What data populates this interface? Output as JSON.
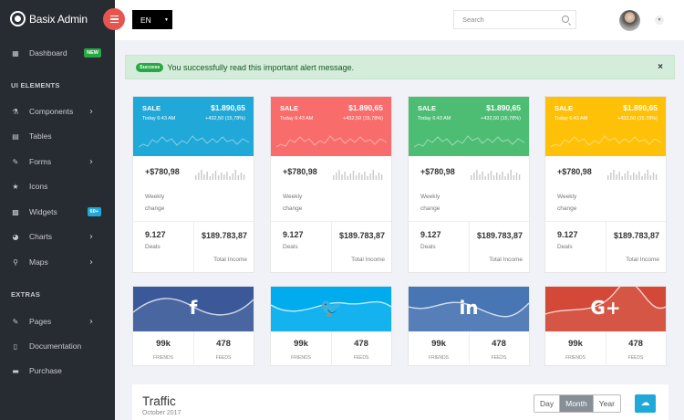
{
  "app": {
    "title": "Basix Admin"
  },
  "sidebar": {
    "items": [
      {
        "label": "Dashboard",
        "icon": "dashboard-icon",
        "glyph": "▦",
        "badge": "NEW",
        "badge_color": "#28a745"
      },
      {
        "label": "Components",
        "icon": "components-icon",
        "glyph": "⚗",
        "arrow": "›"
      },
      {
        "label": "Tables",
        "icon": "tables-icon",
        "glyph": "▤"
      },
      {
        "label": "Forms",
        "icon": "forms-icon",
        "glyph": "✎",
        "arrow": "›"
      },
      {
        "label": "Icons",
        "icon": "star-icon",
        "glyph": "★"
      },
      {
        "label": "Widgets",
        "icon": "calculator-icon",
        "glyph": "▩",
        "badge": "60+",
        "badge_color": "#20a8d8"
      },
      {
        "label": "Charts",
        "icon": "pie-chart-icon",
        "glyph": "◕",
        "arrow": "›"
      },
      {
        "label": "Maps",
        "icon": "map-marker-icon",
        "glyph": "⚲",
        "arrow": "›"
      },
      {
        "label": "Pages",
        "icon": "pages-icon",
        "glyph": "✎",
        "arrow": "›"
      },
      {
        "label": "Documentation",
        "icon": "document-icon",
        "glyph": "▯"
      },
      {
        "label": "Purchase",
        "icon": "cart-icon",
        "glyph": "▬"
      }
    ],
    "sections": [
      "UI ELEMENTS",
      "EXTRAS"
    ]
  },
  "header": {
    "lang": "EN",
    "search_placeholder": "Search"
  },
  "alert": {
    "tag": "Success",
    "message": "You successfully read this important alert message.",
    "close": "×"
  },
  "cards": [
    {
      "color": "#20a8d8",
      "label": "SALE",
      "value": "$1.890,65",
      "time": "Today 6:43 AM",
      "change": "+432,50 (15,78%)",
      "weekly": "+$780,98",
      "weekly_label": "Weekly change",
      "deals": "9.127",
      "deals_label": "Deals",
      "income": "$189.783,87",
      "income_label": "Total Income"
    },
    {
      "color": "#f86c6b",
      "label": "SALE",
      "value": "$1.890,65",
      "time": "Today 6:43 AM",
      "change": "+432,50 (15,78%)",
      "weekly": "+$780,98",
      "weekly_label": "Weekly change",
      "deals": "9.127",
      "deals_label": "Deals",
      "income": "$189.783,87",
      "income_label": "Total Income"
    },
    {
      "color": "#4dbd74",
      "label": "SALE",
      "value": "$1.890,65",
      "time": "Today 6:43 AM",
      "change": "+432,50 (15,78%)",
      "weekly": "+$780,98",
      "weekly_label": "Weekly change",
      "deals": "9.127",
      "deals_label": "Deals",
      "income": "$189.783,87",
      "income_label": "Total Income"
    },
    {
      "color": "#ffc107",
      "label": "SALE",
      "value": "$1.890,65",
      "time": "Today 6:43 AM",
      "change": "+432,50 (15,78%)",
      "weekly": "+$780,98",
      "weekly_label": "Weekly change",
      "deals": "9.127",
      "deals_label": "Deals",
      "income": "$189.783,87",
      "income_label": "Total Income"
    }
  ],
  "social": [
    {
      "network": "facebook",
      "icon": "facebook-icon",
      "glyph": "f",
      "color": "#3b5998",
      "friends": "99k",
      "friends_label": "FRIENDS",
      "feeds": "478",
      "feeds_label": "FEEDS"
    },
    {
      "network": "twitter",
      "icon": "twitter-icon",
      "glyph": "🐦",
      "color": "#00aced",
      "friends": "99k",
      "friends_label": "FRIENDS",
      "feeds": "478",
      "feeds_label": "FEEDS"
    },
    {
      "network": "linkedin",
      "icon": "linkedin-icon",
      "glyph": "in",
      "color": "#4875b4",
      "friends": "99k",
      "friends_label": "FRIENDS",
      "feeds": "478",
      "feeds_label": "FEEDS"
    },
    {
      "network": "google-plus",
      "icon": "google-plus-icon",
      "glyph": "G+",
      "color": "#d34836",
      "friends": "99k",
      "friends_label": "FRIENDS",
      "feeds": "478",
      "feeds_label": "FEEDS"
    }
  ],
  "traffic": {
    "title": "Traffic",
    "subtitle": "October 2017",
    "tabs": [
      "Day",
      "Month",
      "Year"
    ],
    "active_tab": "Month",
    "cloud_icon": "cloud-download-icon"
  }
}
